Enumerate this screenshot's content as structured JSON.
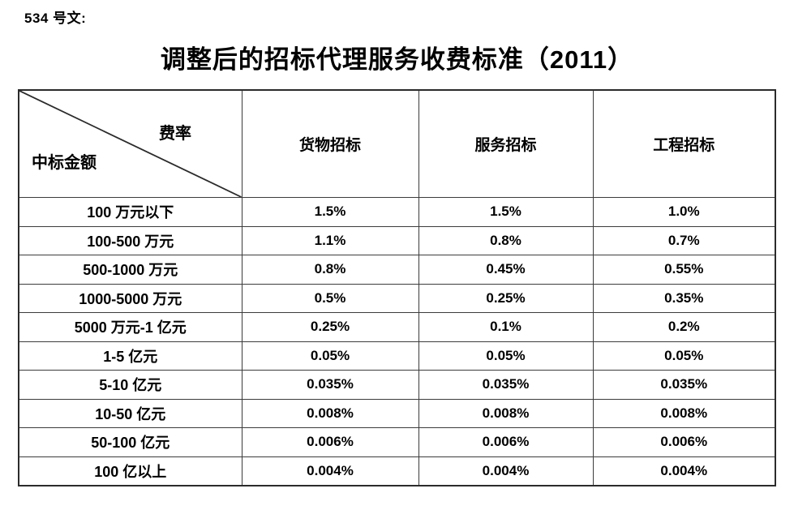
{
  "page": {
    "doc_ref": "534 号文:",
    "title": "调整后的招标代理服务收费标准（2011）"
  },
  "table": {
    "corner": {
      "top_right_label": "费率",
      "bottom_left_label": "中标金额"
    },
    "columns": [
      "货物招标",
      "服务招标",
      "工程招标"
    ],
    "rows": [
      {
        "label": "100 万元以下",
        "values": [
          "1.5%",
          "1.5%",
          "1.0%"
        ]
      },
      {
        "label": "100-500 万元",
        "values": [
          "1.1%",
          "0.8%",
          "0.7%"
        ]
      },
      {
        "label": "500-1000 万元",
        "values": [
          "0.8%",
          "0.45%",
          "0.55%"
        ]
      },
      {
        "label": "1000-5000 万元",
        "values": [
          "0.5%",
          "0.25%",
          "0.35%"
        ]
      },
      {
        "label": "5000 万元-1 亿元",
        "values": [
          "0.25%",
          "0.1%",
          "0.2%"
        ]
      },
      {
        "label": "1-5 亿元",
        "values": [
          "0.05%",
          "0.05%",
          "0.05%"
        ]
      },
      {
        "label": "5-10 亿元",
        "values": [
          "0.035%",
          "0.035%",
          "0.035%"
        ]
      },
      {
        "label": "10-50 亿元",
        "values": [
          "0.008%",
          "0.008%",
          "0.008%"
        ]
      },
      {
        "label": "50-100 亿元",
        "values": [
          "0.006%",
          "0.006%",
          "0.006%"
        ]
      },
      {
        "label": "100 亿以上",
        "values": [
          "0.004%",
          "0.004%",
          "0.004%"
        ]
      }
    ]
  },
  "colors": {
    "text": "#000000",
    "border_outer": "#2b2b2b",
    "border_inner": "#3c3c3c",
    "background": "#ffffff"
  }
}
